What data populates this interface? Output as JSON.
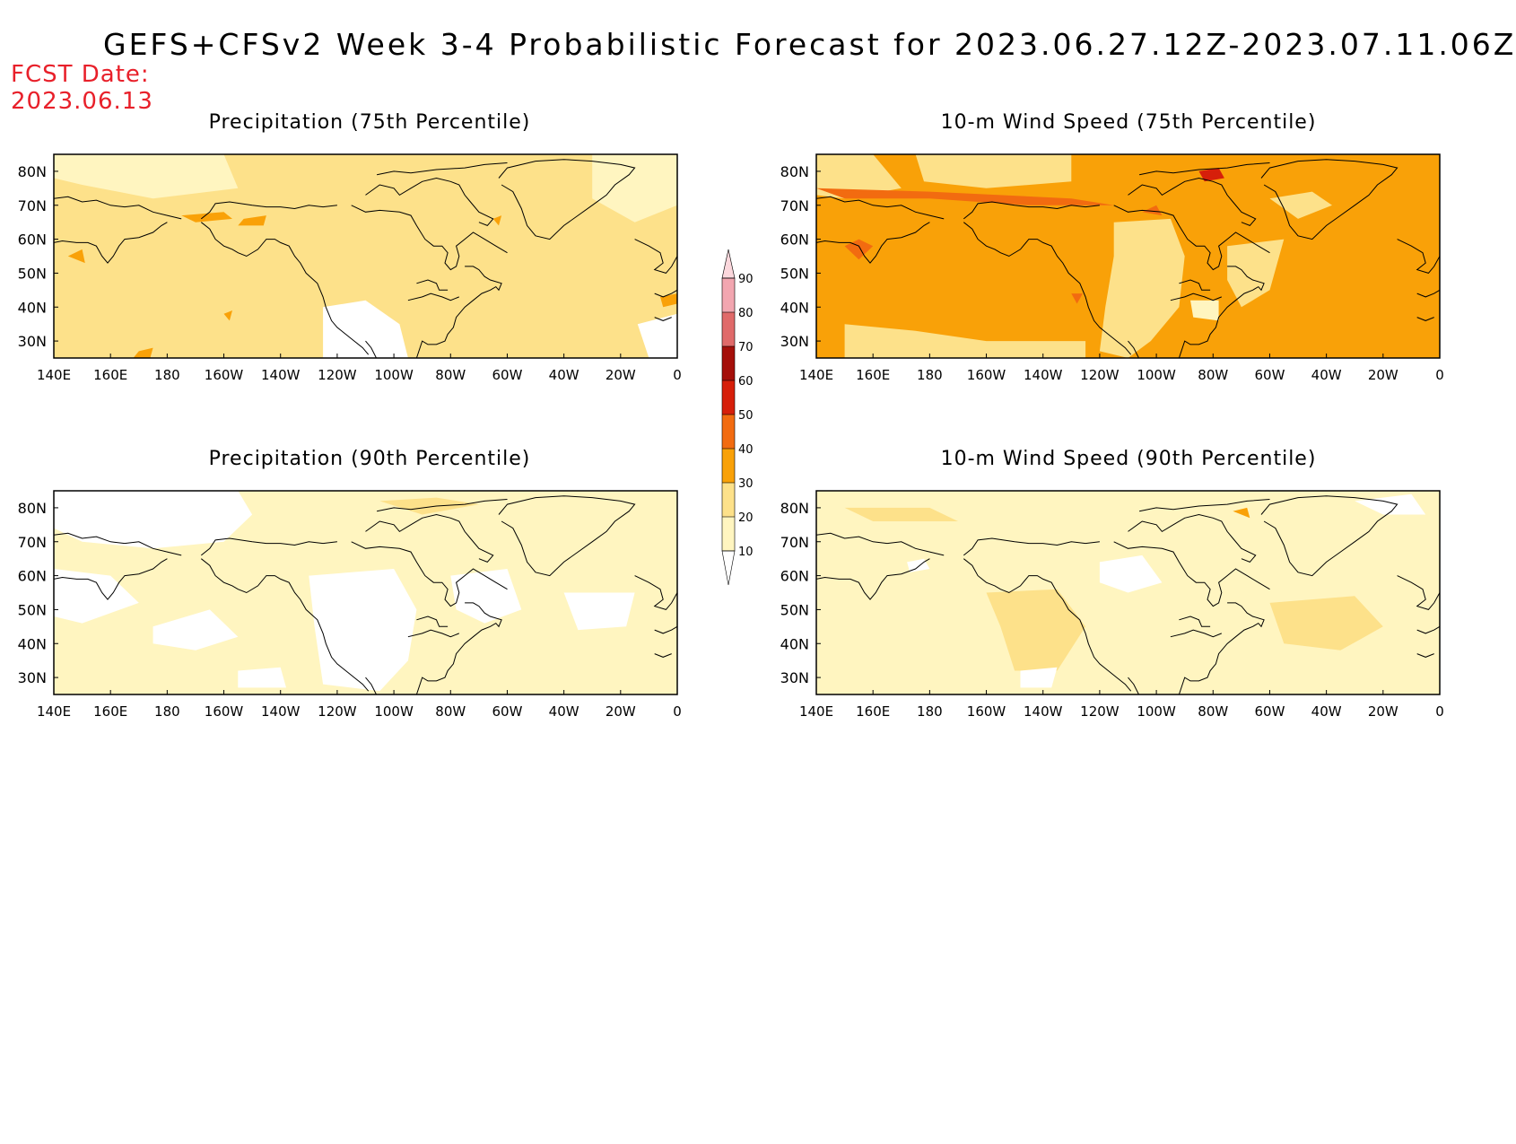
{
  "title": "GEFS+CFSv2 Week 3-4 Probabilistic Forecast for 2023.06.27.12Z-2023.07.11.06Z",
  "forecast_date": {
    "label": "FCST Date:",
    "value": "2023.06.13"
  },
  "panels": [
    {
      "title": "Precipitation (75th Percentile)",
      "variant": "p75"
    },
    {
      "title": "10-m Wind Speed (75th Percentile)",
      "variant": "w75"
    },
    {
      "title": "Precipitation (90th Percentile)",
      "variant": "p90"
    },
    {
      "title": "10-m Wind Speed (90th Percentile)",
      "variant": "w90"
    }
  ],
  "axes": {
    "lat_labels": [
      "80N",
      "70N",
      "60N",
      "50N",
      "40N",
      "30N"
    ],
    "lon_labels": [
      "140E",
      "160E",
      "180",
      "160W",
      "140W",
      "120W",
      "100W",
      "80W",
      "60W",
      "40W",
      "20W",
      "0"
    ]
  },
  "colorbar": {
    "levels": [
      "10",
      "20",
      "30",
      "40",
      "50",
      "60",
      "70",
      "80",
      "90"
    ],
    "colors": [
      "#ffffff",
      "#fff5c0",
      "#fde18a",
      "#f9a108",
      "#f26b10",
      "#d61f0a",
      "#a50f0a",
      "#e06a6a",
      "#f2a6b0",
      "#fbd7dc"
    ]
  },
  "colors": {
    "title": "#000000",
    "fcst_date": "#e8202a",
    "coastline": "#000000"
  }
}
